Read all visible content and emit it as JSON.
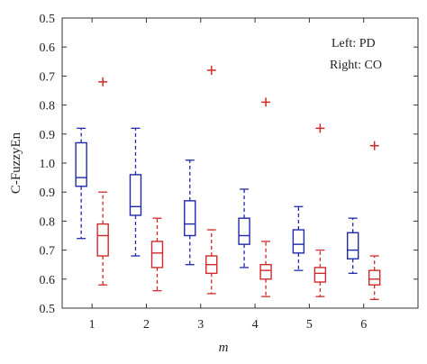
{
  "chart_data": {
    "type": "box",
    "title": "",
    "xlabel": "m",
    "ylabel": "C-FuzzyEn",
    "categories": [
      "1",
      "2",
      "3",
      "4",
      "5",
      "6"
    ],
    "y_tick_labels": [
      "0.5",
      "0.6",
      "0.7",
      "0.8",
      "0.9",
      "1.0",
      "0.9",
      "0.8",
      "0.7",
      "0.6",
      "0.5"
    ],
    "y_scale": "linear index 0-10 with printed labels as shown",
    "legend": {
      "lines": [
        "Left: PD",
        "Right: CO"
      ],
      "position": "top-right"
    },
    "series": [
      {
        "name": "PD",
        "color": "#1f2aa8",
        "boxes": [
          {
            "whisker_low": 0.74,
            "q1": 0.92,
            "median": 0.95,
            "q3": 1.07,
            "whisker_high": 1.12,
            "outliers": []
          },
          {
            "whisker_low": 0.68,
            "q1": 0.82,
            "median": 0.85,
            "q3": 0.96,
            "whisker_high": 1.12,
            "outliers": []
          },
          {
            "whisker_low": 0.65,
            "q1": 0.75,
            "median": 0.79,
            "q3": 0.87,
            "whisker_high": 1.01,
            "outliers": []
          },
          {
            "whisker_low": 0.64,
            "q1": 0.72,
            "median": 0.75,
            "q3": 0.81,
            "whisker_high": 0.91,
            "outliers": []
          },
          {
            "whisker_low": 0.63,
            "q1": 0.69,
            "median": 0.72,
            "q3": 0.77,
            "whisker_high": 0.85,
            "outliers": []
          },
          {
            "whisker_low": 0.62,
            "q1": 0.67,
            "median": 0.7,
            "q3": 0.76,
            "whisker_high": 0.81,
            "outliers": []
          }
        ]
      },
      {
        "name": "CO",
        "color": "#d02a2a",
        "boxes": [
          {
            "whisker_low": 0.58,
            "q1": 0.68,
            "median": 0.75,
            "q3": 0.79,
            "whisker_high": 0.9,
            "outliers": [
              1.28
            ]
          },
          {
            "whisker_low": 0.56,
            "q1": 0.64,
            "median": 0.69,
            "q3": 0.73,
            "whisker_high": 0.81,
            "outliers": []
          },
          {
            "whisker_low": 0.55,
            "q1": 0.62,
            "median": 0.65,
            "q3": 0.68,
            "whisker_high": 0.77,
            "outliers": [
              1.32
            ]
          },
          {
            "whisker_low": 0.54,
            "q1": 0.6,
            "median": 0.63,
            "q3": 0.65,
            "whisker_high": 0.73,
            "outliers": [
              1.21
            ]
          },
          {
            "whisker_low": 0.54,
            "q1": 0.59,
            "median": 0.62,
            "q3": 0.64,
            "whisker_high": 0.7,
            "outliers": [
              1.12
            ]
          },
          {
            "whisker_low": 0.53,
            "q1": 0.58,
            "median": 0.6,
            "q3": 0.63,
            "whisker_high": 0.68,
            "outliers": [
              1.06
            ]
          }
        ]
      }
    ]
  }
}
